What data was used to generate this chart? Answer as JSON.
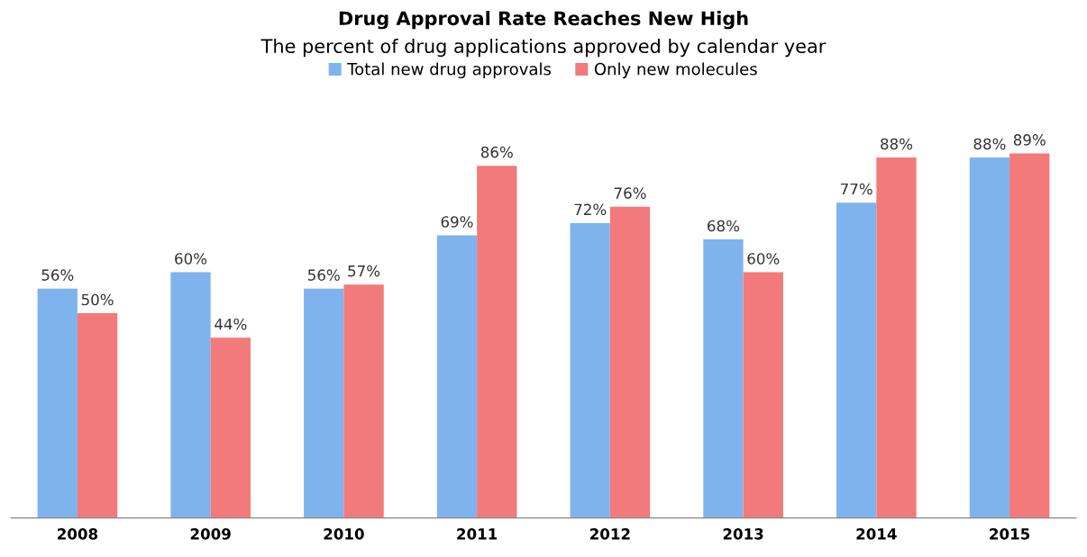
{
  "chart_data": {
    "type": "bar",
    "title": "Drug Approval Rate Reaches New High",
    "subtitle": "The percent of drug applications approved by calendar year",
    "categories": [
      "2008",
      "2009",
      "2010",
      "2011",
      "2012",
      "2013",
      "2014",
      "2015"
    ],
    "series": [
      {
        "name": "Total new drug approvals",
        "color": "#7fb3ee",
        "values": [
          56,
          60,
          56,
          69,
          72,
          68,
          77,
          88
        ],
        "value_labels": [
          "56%",
          "60%",
          "56%",
          "69%",
          "72%",
          "68%",
          "77%",
          "88%"
        ]
      },
      {
        "name": "Only new molecules",
        "color": "#f27a7a",
        "values": [
          50,
          44,
          57,
          86,
          76,
          60,
          88,
          89
        ],
        "value_labels": [
          "50%",
          "44%",
          "57%",
          "86%",
          "76%",
          "60%",
          "88%",
          "89%"
        ]
      }
    ],
    "tick_labels": "x",
    "legend": "top",
    "grid": false
  }
}
